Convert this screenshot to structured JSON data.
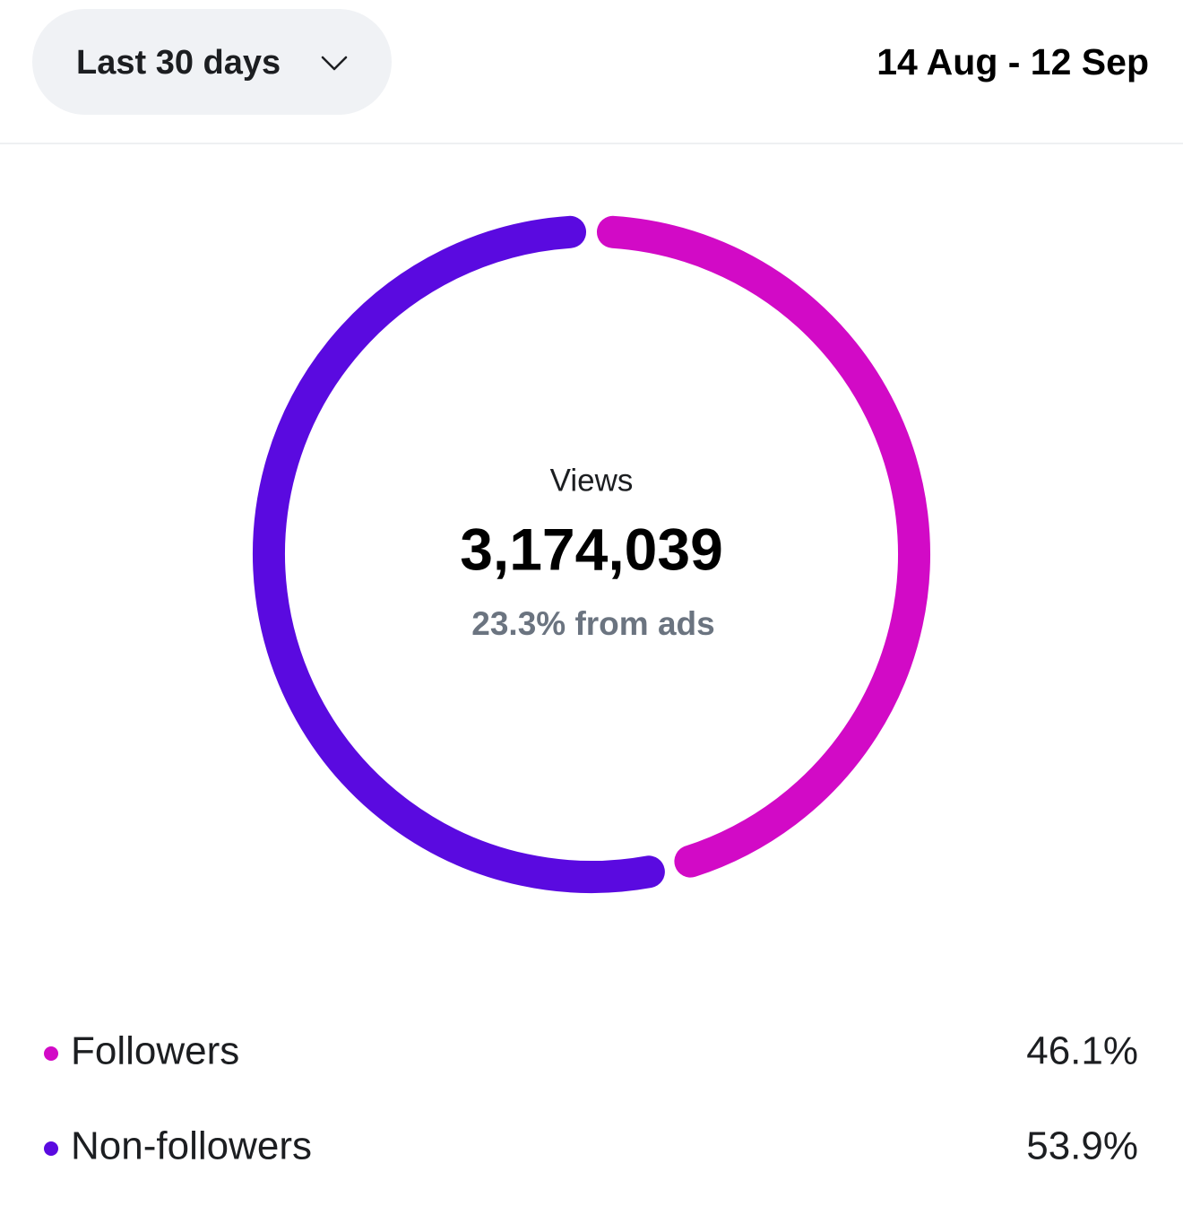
{
  "header": {
    "filter": "Last 30 days",
    "date_range": "14 Aug - 12 Sep"
  },
  "chart_data": {
    "type": "pie",
    "center_title": "Views",
    "center_value": "3,174,039",
    "center_subtitle": "23.3% from ads",
    "categories": [
      "Followers",
      "Non-followers"
    ],
    "values": [
      46.1,
      53.9
    ],
    "value_labels": [
      "46.1%",
      "53.9%"
    ],
    "colors": [
      "#d20ac6",
      "#5a0ae0"
    ]
  }
}
